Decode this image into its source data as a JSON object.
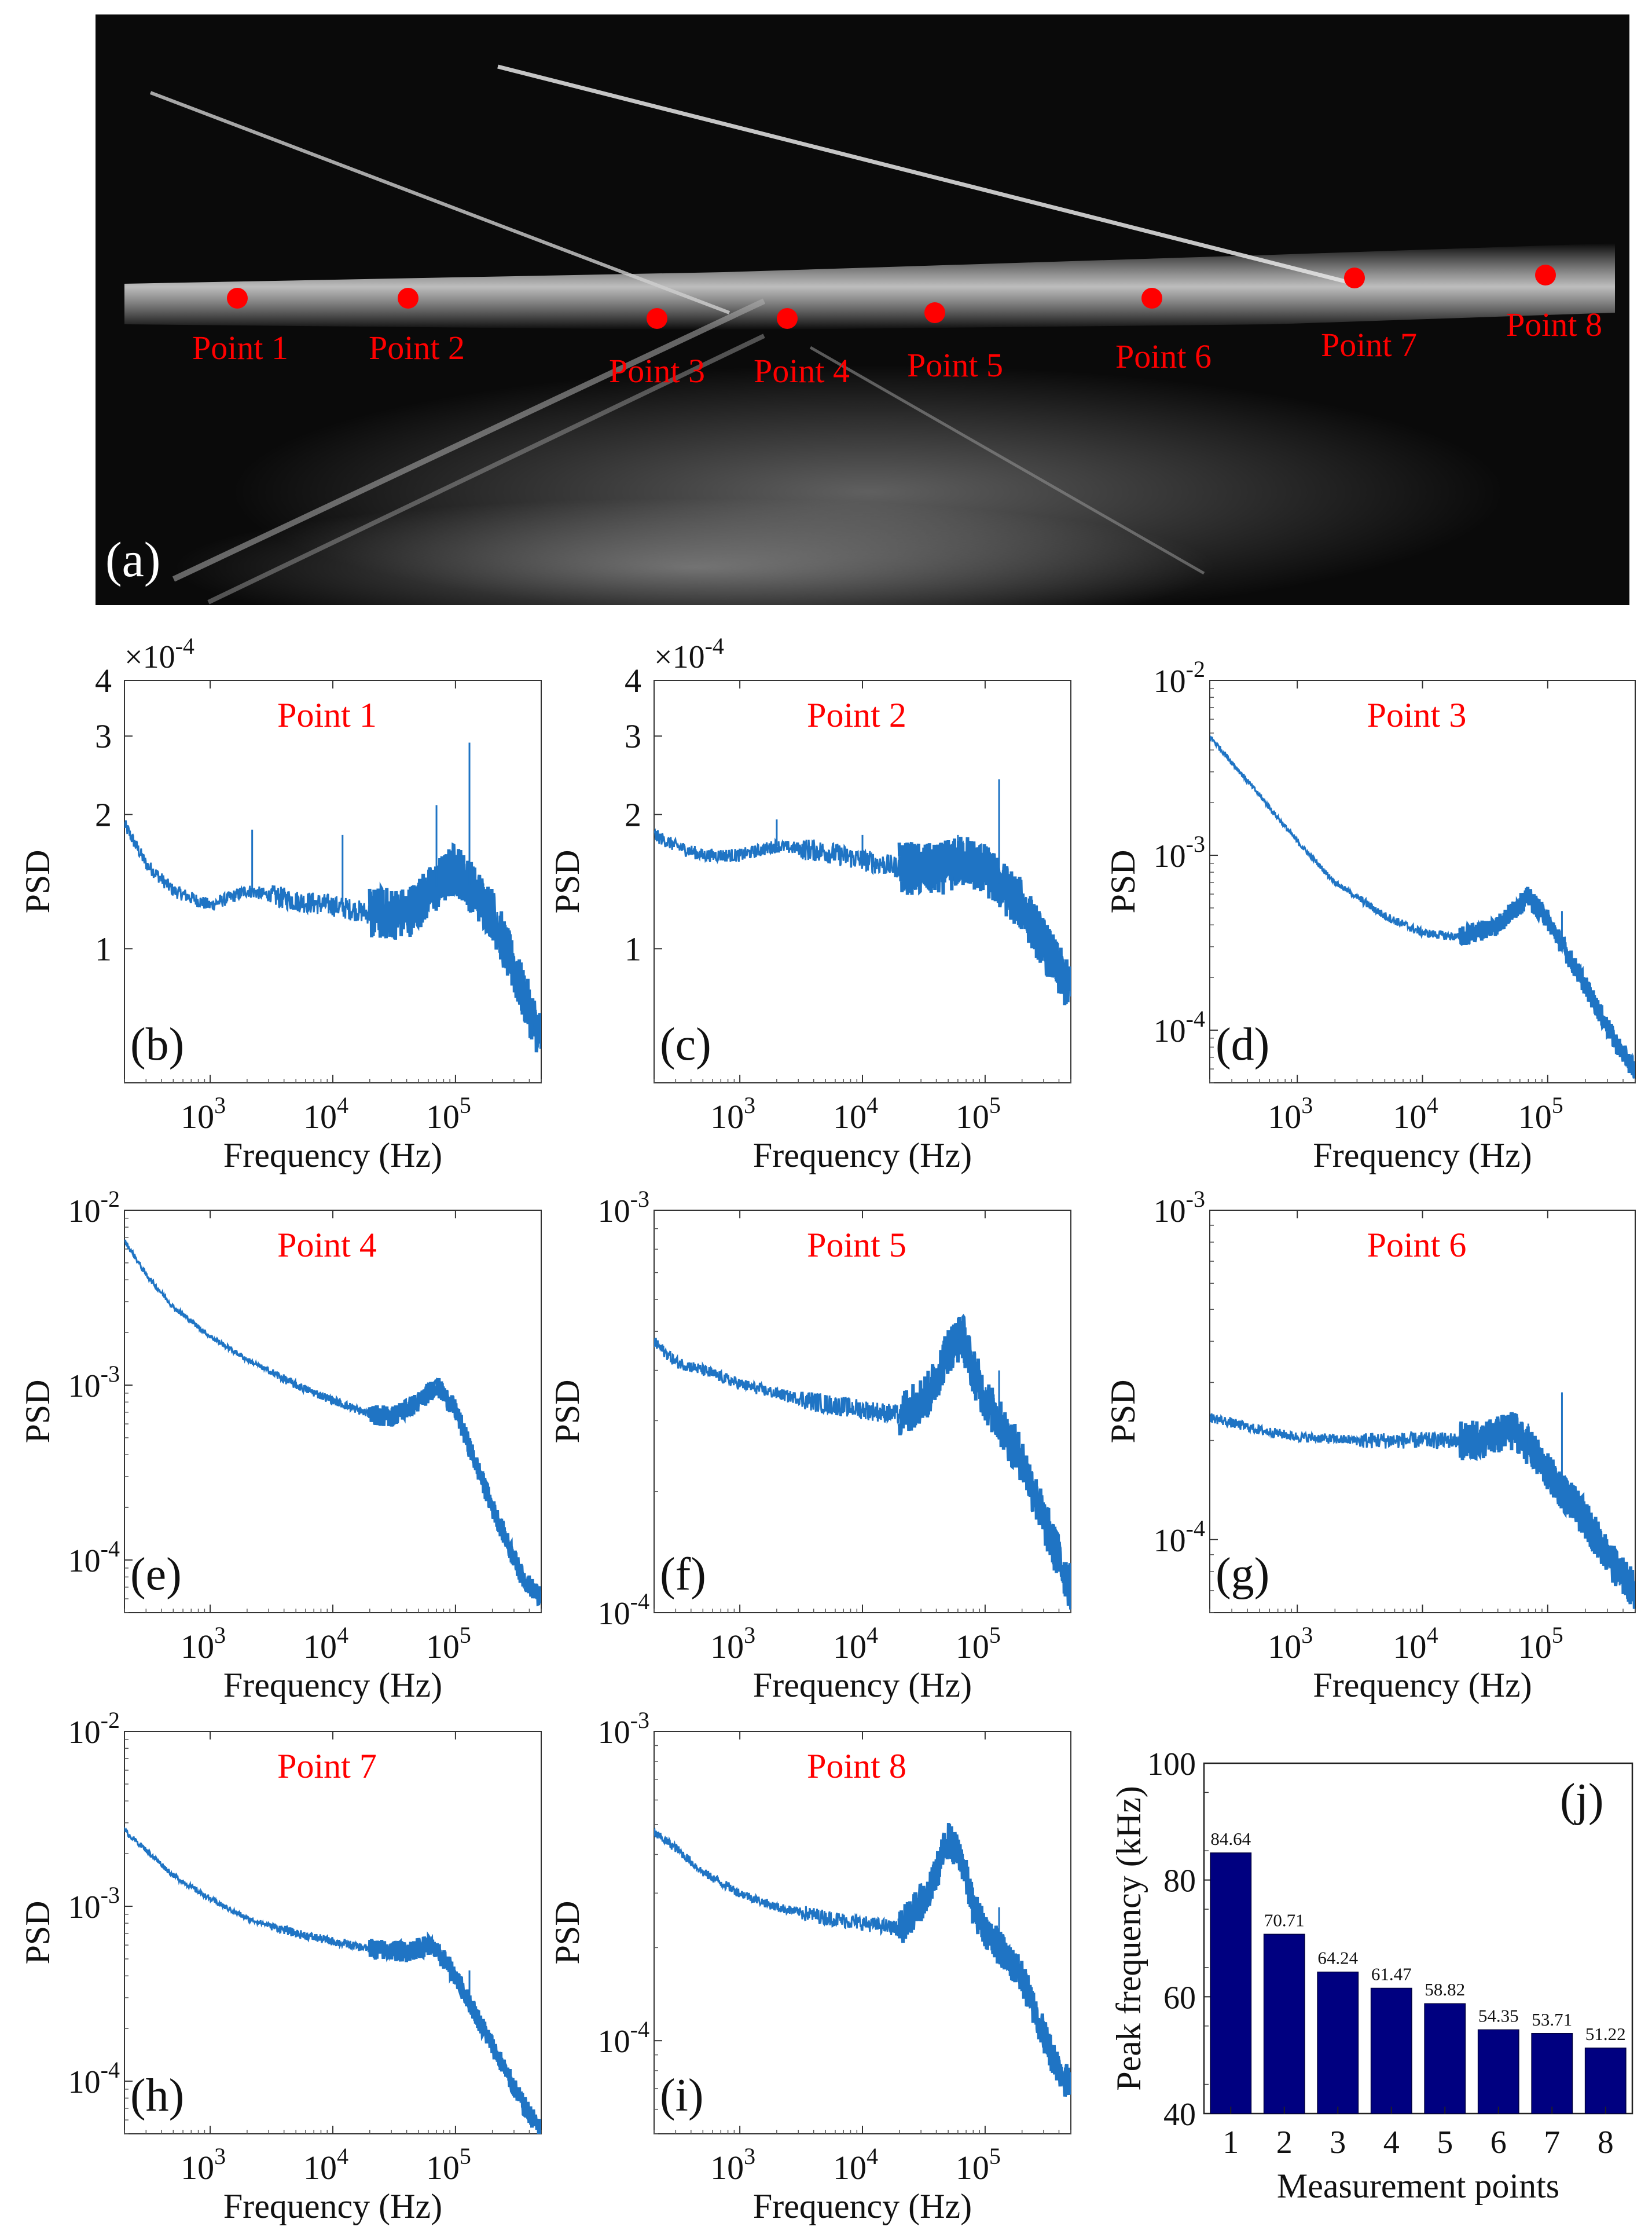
{
  "panel_a": {
    "label": "(a)",
    "points": [
      {
        "label": "Point 1"
      },
      {
        "label": "Point 2"
      },
      {
        "label": "Point 3"
      },
      {
        "label": "Point 4"
      },
      {
        "label": "Point 5"
      },
      {
        "label": "Point 6"
      },
      {
        "label": "Point 7"
      },
      {
        "label": "Point 8"
      }
    ],
    "marker_color": "#ff0000"
  },
  "chart_data": [
    {
      "type": "line",
      "panel": "(b)",
      "title": "Point 1",
      "xlabel": "Frequency (Hz)",
      "ylabel": "PSD",
      "xscale": "log",
      "yscale": "log",
      "xlim": [
        200,
        500000
      ],
      "ylim": [
        5e-05,
        0.0004
      ],
      "multiplier": "×10",
      "multiplier_exp": "-4",
      "yticks": [
        "1",
        "2",
        "3",
        "4"
      ],
      "yticks_values": [
        0.0001,
        0.0002,
        0.0003,
        0.0004
      ],
      "x": [
        200,
        300,
        500,
        1000,
        2000,
        5000,
        10000,
        20000,
        40000,
        70000,
        100000,
        200000,
        350000,
        500000
      ],
      "y": [
        0.00019,
        0.000155,
        0.000135,
        0.000125,
        0.000135,
        0.000128,
        0.000125,
        0.00012,
        0.00012,
        0.000138,
        0.000152,
        0.00012,
        8e-05,
        6.3e-05
      ],
      "spikes": [
        [
          2200,
          0.000185
        ],
        [
          12000,
          0.00018
        ],
        [
          70000,
          0.00021
        ],
        [
          130000,
          0.00029
        ]
      ]
    },
    {
      "type": "line",
      "panel": "(c)",
      "title": "Point 2",
      "xlabel": "Frequency (Hz)",
      "ylabel": "PSD",
      "xscale": "log",
      "yscale": "log",
      "xlim": [
        200,
        500000
      ],
      "ylim": [
        5e-05,
        0.0004
      ],
      "multiplier": "×10",
      "multiplier_exp": "-4",
      "yticks": [
        "1",
        "2",
        "3",
        "4"
      ],
      "yticks_values": [
        0.0001,
        0.0002,
        0.0003,
        0.0004
      ],
      "x": [
        200,
        300,
        500,
        1000,
        2000,
        5000,
        10000,
        20000,
        40000,
        70000,
        100000,
        200000,
        350000,
        500000
      ],
      "y": [
        0.00018,
        0.00017,
        0.000162,
        0.000162,
        0.00017,
        0.000165,
        0.000158,
        0.000152,
        0.00015,
        0.000158,
        0.00015,
        0.000125,
        9.5e-05,
        8e-05
      ],
      "spikes": [
        [
          2000,
          0.000195
        ],
        [
          10000,
          0.00018
        ],
        [
          60000,
          0.00018
        ],
        [
          130000,
          0.00024
        ]
      ]
    },
    {
      "type": "line",
      "panel": "(d)",
      "title": "Point 3",
      "xlabel": "Frequency (Hz)",
      "ylabel": "PSD",
      "xscale": "log",
      "yscale": "log",
      "xlim": [
        200,
        500000
      ],
      "ylim": [
        5e-05,
        0.01
      ],
      "ytick_exps": [
        "-2",
        "-3",
        "-4"
      ],
      "yticks_values": [
        0.01,
        0.001,
        0.0001
      ],
      "x": [
        200,
        300,
        500,
        1000,
        2000,
        5000,
        10000,
        20000,
        40000,
        70000,
        100000,
        200000,
        350000,
        500000
      ],
      "y": [
        0.0048,
        0.0034,
        0.0022,
        0.0012,
        0.0007,
        0.00045,
        0.00036,
        0.00034,
        0.0004,
        0.00058,
        0.00043,
        0.00018,
        8.5e-05,
        5.8e-05
      ],
      "spikes": [
        [
          130000,
          0.00048
        ]
      ]
    },
    {
      "type": "line",
      "panel": "(e)",
      "title": "Point 4",
      "xlabel": "Frequency (Hz)",
      "ylabel": "PSD",
      "xscale": "log",
      "yscale": "log",
      "xlim": [
        200,
        500000
      ],
      "ylim": [
        5e-05,
        0.01
      ],
      "ytick_exps": [
        "-2",
        "-3",
        "-4"
      ],
      "yticks_values": [
        0.01,
        0.001,
        0.0001
      ],
      "x": [
        200,
        300,
        500,
        1000,
        2000,
        5000,
        10000,
        20000,
        30000,
        50000,
        70000,
        100000,
        200000,
        350000,
        500000
      ],
      "y": [
        0.0067,
        0.0043,
        0.0028,
        0.0019,
        0.0014,
        0.001,
        0.00082,
        0.00068,
        0.00066,
        0.0008,
        0.001,
        0.00072,
        0.0002,
        8e-05,
        6e-05
      ],
      "spikes": [
        [
          130000,
          0.00043
        ]
      ]
    },
    {
      "type": "line",
      "panel": "(f)",
      "title": "Point 5",
      "xlabel": "Frequency (Hz)",
      "ylabel": "PSD",
      "xscale": "log",
      "yscale": "log",
      "xlim": [
        200,
        500000
      ],
      "ylim": [
        0.0001,
        0.001
      ],
      "ytick_exps": [
        "-3",
        "-4"
      ],
      "yticks_values": [
        0.001,
        0.0001
      ],
      "x": [
        200,
        300,
        500,
        1000,
        2000,
        5000,
        10000,
        20000,
        35000,
        50000,
        65000,
        80000,
        100000,
        200000,
        350000,
        500000
      ],
      "y": [
        0.00047,
        0.00042,
        0.0004,
        0.00037,
        0.00035,
        0.00033,
        0.00032,
        0.00031,
        0.00035,
        0.00045,
        0.00049,
        0.0004,
        0.00034,
        0.00024,
        0.00015,
        0.000115
      ],
      "spikes": [
        [
          60000,
          0.00051
        ],
        [
          130000,
          0.0004
        ]
      ]
    },
    {
      "type": "line",
      "panel": "(g)",
      "title": "Point 6",
      "xlabel": "Frequency (Hz)",
      "ylabel": "PSD",
      "xscale": "log",
      "yscale": "log",
      "xlim": [
        200,
        500000
      ],
      "ylim": [
        6e-05,
        0.001
      ],
      "ytick_exps": [
        "-3",
        "-4"
      ],
      "yticks_values": [
        0.001,
        0.0001
      ],
      "x": [
        200,
        500,
        1000,
        3000,
        10000,
        30000,
        55000,
        80000,
        100000,
        200000,
        350000,
        500000
      ],
      "y": [
        0.000235,
        0.000215,
        0.000205,
        0.0002,
        0.0002,
        0.0002,
        0.000215,
        0.00018,
        0.00016,
        0.000115,
        8.2e-05,
        7e-05
      ],
      "spikes": [
        [
          70000,
          0.000225
        ],
        [
          130000,
          0.00028
        ]
      ]
    },
    {
      "type": "line",
      "panel": "(h)",
      "title": "Point 7",
      "xlabel": "Frequency (Hz)",
      "ylabel": "PSD",
      "xscale": "log",
      "yscale": "log",
      "xlim": [
        200,
        500000
      ],
      "ylim": [
        5e-05,
        0.01
      ],
      "ytick_exps": [
        "-2",
        "-3",
        "-4"
      ],
      "yticks_values": [
        0.01,
        0.001,
        0.0001
      ],
      "x": [
        200,
        300,
        500,
        1000,
        2000,
        5000,
        10000,
        20000,
        40000,
        60000,
        80000,
        100000,
        200000,
        350000,
        500000
      ],
      "y": [
        0.0027,
        0.0021,
        0.0015,
        0.0011,
        0.00085,
        0.0007,
        0.00063,
        0.00057,
        0.00055,
        0.0006,
        0.0005,
        0.0004,
        0.00016,
        7.5e-05,
        5.2e-05
      ],
      "spikes": [
        [
          130000,
          0.00043
        ]
      ]
    },
    {
      "type": "line",
      "panel": "(i)",
      "title": "Point 8",
      "xlabel": "Frequency (Hz)",
      "ylabel": "PSD",
      "xscale": "log",
      "yscale": "log",
      "xlim": [
        200,
        500000
      ],
      "ylim": [
        5e-05,
        0.001
      ],
      "ytick_exps": [
        "-3",
        "-4"
      ],
      "yticks_values": [
        0.001,
        0.0001
      ],
      "x": [
        200,
        300,
        500,
        1000,
        2000,
        5000,
        10000,
        20000,
        35000,
        50000,
        65000,
        80000,
        100000,
        200000,
        350000,
        500000
      ],
      "y": [
        0.00047,
        0.00042,
        0.00035,
        0.0003,
        0.00027,
        0.00025,
        0.00024,
        0.00023,
        0.0003,
        0.00045,
        0.00038,
        0.00027,
        0.00023,
        0.00016,
        9e-05,
        7e-05
      ],
      "spikes": [
        [
          130000,
          0.00027
        ]
      ]
    },
    {
      "type": "bar",
      "panel": "(j)",
      "title": "",
      "xlabel": "Measurement points",
      "ylabel": "Peak frequency (kHz)",
      "categories": [
        "1",
        "2",
        "3",
        "4",
        "5",
        "6",
        "7",
        "8"
      ],
      "values": [
        84.64,
        70.71,
        64.24,
        61.47,
        58.82,
        54.35,
        53.71,
        51.22
      ],
      "value_labels": [
        "84.64",
        "70.71",
        "64.24",
        "61.47",
        "58.82",
        "54.35",
        "53.71",
        "51.22"
      ],
      "ylim": [
        40,
        100
      ],
      "yticks": [
        "40",
        "60",
        "80",
        "100"
      ],
      "bar_color": "#000080"
    }
  ],
  "psd_xtick_base": "10",
  "psd_xtick_exps": [
    "3",
    "4",
    "5"
  ],
  "colors": {
    "line": "#1f74c4",
    "title": "#ff0000",
    "bar": "#000080"
  }
}
